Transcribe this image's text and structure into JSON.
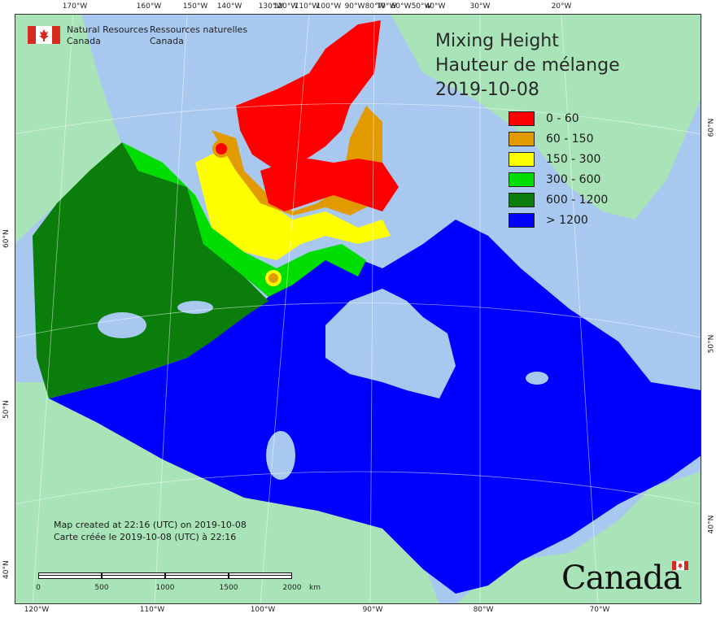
{
  "map": {
    "title_en": "Mixing Height",
    "title_fr": "Hauteur de mélange",
    "date": "2019-10-08",
    "legend": [
      {
        "label": "0 - 60",
        "color": "#ff0000"
      },
      {
        "label": "60 - 150",
        "color": "#e19b00"
      },
      {
        "label": "150 - 300",
        "color": "#ffff00"
      },
      {
        "label": "300 - 600",
        "color": "#00dd00"
      },
      {
        "label": "600 - 1200",
        "color": "#0a7d0a"
      },
      {
        "label": "> 1200",
        "color": "#0000ff"
      }
    ],
    "colors": {
      "ocean": "#a8c8f0",
      "land_outside": "#a8e4b8",
      "lake": "#a8c8f0"
    }
  },
  "agency": {
    "name_en_1": "Natural Resources",
    "name_en_2": "Canada",
    "name_fr_1": "Ressources naturelles",
    "name_fr_2": "Canada"
  },
  "credits": {
    "created_en": "Map created at 22:16 (UTC) on 2019-10-08",
    "created_fr": "Carte créée le 2019-10-08 (UTC) à 22:16"
  },
  "scale": {
    "labels": [
      "0",
      "500",
      "1000",
      "1500",
      "2000"
    ],
    "unit": "km"
  },
  "wordmark": "Canada",
  "ticks": {
    "top": [
      "170°W",
      "160°W",
      "150°W",
      "140°W",
      "130°W",
      "120°W",
      "110°W",
      "100°W",
      "90°W",
      "80°W",
      "70°W",
      "60°W",
      "50°W",
      "40°W",
      "30°W",
      "20°W"
    ],
    "bottom": [
      "120°W",
      "110°W",
      "100°W",
      "90°W",
      "80°W",
      "70°W"
    ],
    "left": [
      "60°N",
      "50°N",
      "40°N"
    ],
    "right": [
      "60°N",
      "50°N",
      "40°N"
    ]
  }
}
